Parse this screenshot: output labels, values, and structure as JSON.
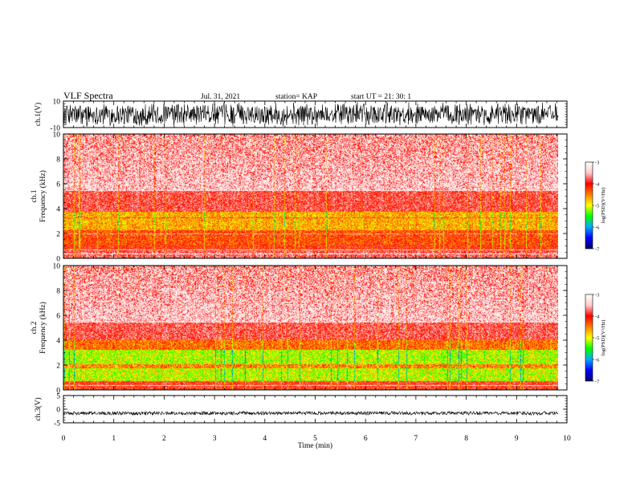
{
  "header": {
    "title": "VLF Spectra",
    "date": "Jul. 31, 2021",
    "station": "station= KAP",
    "start_ut": "start UT = 21: 30: 1"
  },
  "chart_data": [
    {
      "type": "line",
      "panel": "ch1-waveform",
      "ylabel": "ch.1(V)",
      "ylim": [
        -10,
        10
      ],
      "yticks": [
        "10",
        "-10"
      ],
      "x_extent": [
        0,
        9.83
      ],
      "color": "#000000"
    },
    {
      "type": "heatmap",
      "panel": "ch1-spectrogram",
      "ylabel": "ch.1\nFrequency (kHz)",
      "ylim": [
        0,
        10
      ],
      "yticks": [
        "0",
        "2",
        "4",
        "6",
        "8",
        "10"
      ],
      "x_extent": [
        0,
        9.83
      ],
      "colorbar": {
        "label": "log(PSD)(V²/Hz)",
        "range": [
          -7,
          -3
        ],
        "ticks": [
          "-3",
          "-4",
          "-5",
          "-6",
          "-7"
        ],
        "colors": [
          "#000066",
          "#0000ff",
          "#00aaff",
          "#00ff00",
          "#ffff00",
          "#ff8000",
          "#ff0000",
          "#ffcccc",
          "#ffffff"
        ]
      }
    },
    {
      "type": "heatmap",
      "panel": "ch2-spectrogram",
      "ylabel": "ch.2\nFrequency (kHz)",
      "ylim": [
        0,
        10
      ],
      "yticks": [
        "0",
        "2",
        "4",
        "6",
        "8",
        "10"
      ],
      "x_extent": [
        0,
        9.83
      ],
      "colorbar": {
        "label": "log(PSD)(V²/Hz)",
        "range": [
          -7,
          -3
        ],
        "ticks": [
          "-3",
          "-4",
          "-5",
          "-6",
          "-7"
        ],
        "colors": [
          "#000066",
          "#0000ff",
          "#00aaff",
          "#00ff00",
          "#ffff00",
          "#ff8000",
          "#ff0000",
          "#ffcccc",
          "#ffffff"
        ]
      }
    },
    {
      "type": "line",
      "panel": "ch3-waveform",
      "ylabel": "ch.3(V)",
      "ylim": [
        -5,
        5
      ],
      "yticks": [
        "5",
        "0",
        "-5"
      ],
      "x_extent": [
        0,
        9.83
      ],
      "color": "#000000"
    }
  ],
  "xaxis": {
    "label": "Time (min)",
    "ticks": [
      "0",
      "1",
      "2",
      "3",
      "4",
      "5",
      "6",
      "7",
      "8",
      "9",
      "10"
    ],
    "range": [
      0,
      10
    ]
  }
}
